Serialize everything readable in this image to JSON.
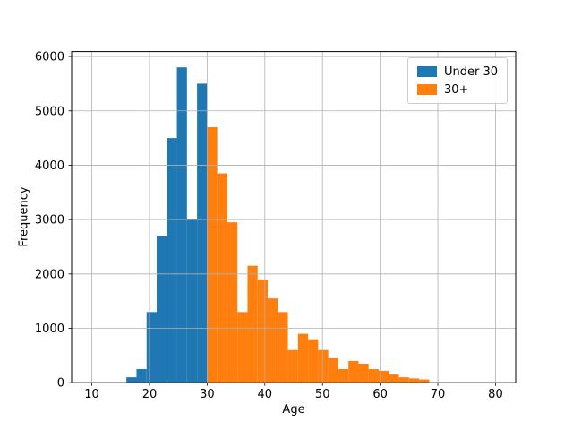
{
  "figure": {
    "background": "#ffffff"
  },
  "chart_data": {
    "type": "bar",
    "subtype": "histogram",
    "title": "",
    "xlabel": "Age",
    "ylabel": "Frequency",
    "xlim": [
      6.5,
      83.5
    ],
    "ylim": [
      0,
      6090
    ],
    "xticks": [
      10,
      20,
      30,
      40,
      50,
      60,
      70,
      80
    ],
    "yticks": [
      0,
      1000,
      2000,
      3000,
      4000,
      5000,
      6000
    ],
    "grid": true,
    "bin_width": 1.75,
    "legend": {
      "position": "upper right",
      "entries": [
        {
          "label": "Under 30",
          "color": "#1f77b4"
        },
        {
          "label": "30+",
          "color": "#ff7f0e"
        }
      ]
    },
    "series": [
      {
        "name": "Under 30",
        "color": "#1f77b4",
        "bin_start": 16,
        "values": [
          100,
          250,
          1300,
          2700,
          4500,
          5800,
          3000,
          5500
        ]
      },
      {
        "name": "30+",
        "color": "#ff7f0e",
        "bin_start": 30,
        "values": [
          4700,
          3850,
          2950,
          1300,
          2150,
          1900,
          1550,
          1300,
          600,
          900,
          800,
          600,
          450,
          250,
          400,
          350,
          250,
          220,
          150,
          100,
          80,
          60
        ]
      }
    ]
  }
}
